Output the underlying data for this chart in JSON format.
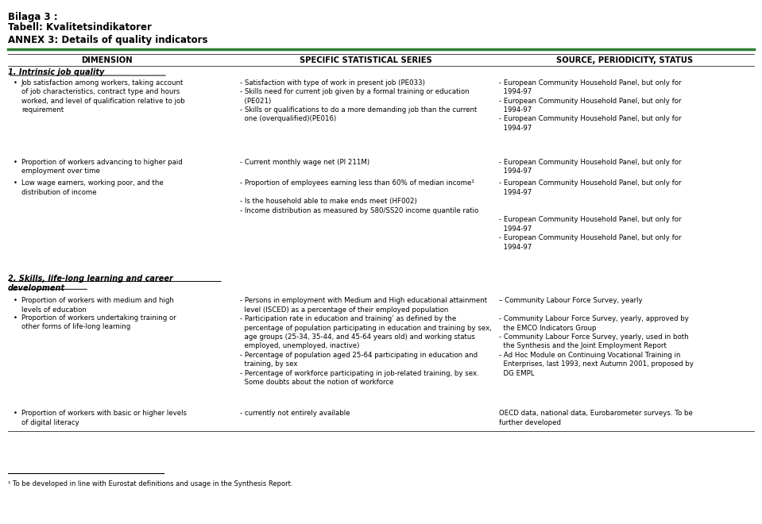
{
  "title1": "Bilaga 3 :",
  "title2": "Tabell: Kvalitetsindikatorer",
  "title3": "ANNEX 3: Details of quality indicators",
  "col_headers": [
    "DIMENSION",
    "SPECIFIC STATISTICAL SERIES",
    "SOURCE, PERIODICITY, STATUS"
  ],
  "header_line_color": "#2e7d32",
  "background_color": "#ffffff",
  "text_color": "#000000",
  "section1_header": "1. Intrinsic job quality",
  "section2_header": "2. Skills, life-long learning and career\ndevelopment",
  "footnote": "¹ To be developed in line with Eurostat definitions and usage in the Synthesis Report."
}
